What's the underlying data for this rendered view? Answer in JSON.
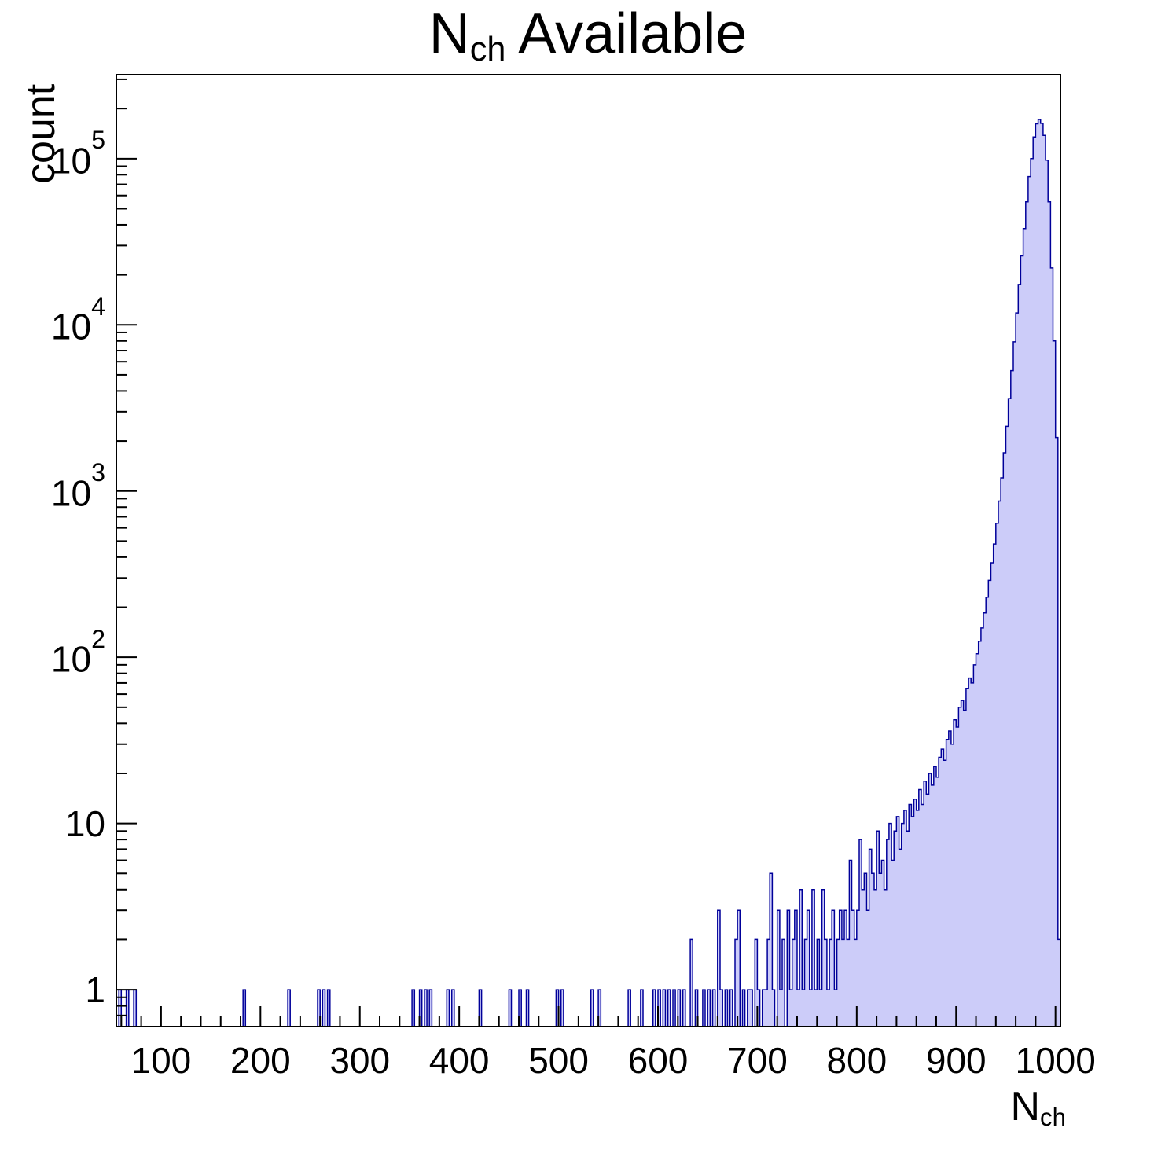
{
  "title": {
    "main": "N",
    "sub": "ch",
    "rest": " Available"
  },
  "axes": {
    "y_label": "count",
    "x_label_main": "N",
    "x_label_sub": "ch",
    "xmin": 55,
    "xmax": 1005,
    "ymin": 0.6,
    "ymax": 320000,
    "yscale": "log",
    "x_major_ticks": [
      100,
      200,
      300,
      400,
      500,
      600,
      700,
      800,
      900,
      1000
    ],
    "x_minor_step": 20,
    "y_major_ticks": [
      {
        "v": 1,
        "base": "1",
        "exp": ""
      },
      {
        "v": 10,
        "base": "10",
        "exp": ""
      },
      {
        "v": 100,
        "base": "10",
        "exp": "2"
      },
      {
        "v": 1000,
        "base": "10",
        "exp": "3"
      },
      {
        "v": 10000,
        "base": "10",
        "exp": "4"
      },
      {
        "v": 100000,
        "base": "10",
        "exp": "5"
      }
    ]
  },
  "colors": {
    "hist_fill": "#ccccf9",
    "hist_line": "#000099",
    "axis": "#000000",
    "background": "#ffffff"
  },
  "chart_data": {
    "type": "bar",
    "subtype": "histogram",
    "title": "N_{ch} Available",
    "xlabel": "N_{ch}",
    "ylabel": "count",
    "xlim": [
      55,
      1005
    ],
    "ylim": [
      0.6,
      320000
    ],
    "yscale": "log",
    "grid": false,
    "legend": false,
    "bin_width": 2.5,
    "bins": [
      [
        57.5,
        1
      ],
      [
        65,
        1
      ],
      [
        72.5,
        1
      ],
      [
        182.5,
        1
      ],
      [
        227.5,
        1
      ],
      [
        257.5,
        1
      ],
      [
        262.5,
        1
      ],
      [
        267.5,
        1
      ],
      [
        352.5,
        1
      ],
      [
        360,
        1
      ],
      [
        365,
        1
      ],
      [
        370,
        1
      ],
      [
        387.5,
        1
      ],
      [
        392.5,
        1
      ],
      [
        420,
        1
      ],
      [
        450,
        1
      ],
      [
        460,
        1
      ],
      [
        467.5,
        1
      ],
      [
        497.5,
        1
      ],
      [
        502.5,
        1
      ],
      [
        532.5,
        1
      ],
      [
        540,
        1
      ],
      [
        570,
        1
      ],
      [
        582.5,
        1
      ],
      [
        595,
        1
      ],
      [
        600,
        1
      ],
      [
        605,
        1
      ],
      [
        610,
        1
      ],
      [
        615,
        1
      ],
      [
        620,
        1
      ],
      [
        625,
        1
      ],
      [
        632.5,
        2
      ],
      [
        637.5,
        1
      ],
      [
        645,
        1
      ],
      [
        650,
        1
      ],
      [
        655,
        1
      ],
      [
        660,
        3
      ],
      [
        662.5,
        1
      ],
      [
        667.5,
        1
      ],
      [
        672.5,
        1
      ],
      [
        677.5,
        2
      ],
      [
        680,
        3
      ],
      [
        685,
        1
      ],
      [
        690,
        1
      ],
      [
        692.5,
        1
      ],
      [
        697.5,
        2
      ],
      [
        700,
        1
      ],
      [
        705,
        1
      ],
      [
        707.5,
        1
      ],
      [
        710,
        2
      ],
      [
        712.5,
        5
      ],
      [
        715,
        1
      ],
      [
        720,
        3
      ],
      [
        722.5,
        1
      ],
      [
        725,
        2
      ],
      [
        730,
        3
      ],
      [
        732.5,
        1
      ],
      [
        735,
        2
      ],
      [
        737.5,
        3
      ],
      [
        740,
        1
      ],
      [
        742.5,
        4
      ],
      [
        745,
        1
      ],
      [
        747.5,
        2
      ],
      [
        750,
        3
      ],
      [
        752.5,
        1
      ],
      [
        755,
        4
      ],
      [
        757.5,
        1
      ],
      [
        760,
        2
      ],
      [
        762.5,
        1
      ],
      [
        765,
        4
      ],
      [
        767.5,
        2
      ],
      [
        770,
        1
      ],
      [
        772.5,
        2
      ],
      [
        775,
        3
      ],
      [
        777.5,
        1
      ],
      [
        780,
        2
      ],
      [
        782.5,
        3
      ],
      [
        785,
        2
      ],
      [
        787.5,
        3
      ],
      [
        790,
        2
      ],
      [
        792.5,
        6
      ],
      [
        795,
        3
      ],
      [
        797.5,
        2
      ],
      [
        800,
        3
      ],
      [
        802.5,
        8
      ],
      [
        805,
        4
      ],
      [
        807.5,
        5
      ],
      [
        810,
        3
      ],
      [
        812.5,
        7
      ],
      [
        815,
        5
      ],
      [
        817.5,
        4
      ],
      [
        820,
        9
      ],
      [
        822.5,
        5
      ],
      [
        825,
        6
      ],
      [
        827.5,
        4
      ],
      [
        830,
        8
      ],
      [
        832.5,
        10
      ],
      [
        835,
        6
      ],
      [
        837.5,
        9
      ],
      [
        840,
        11
      ],
      [
        842.5,
        7
      ],
      [
        845,
        10
      ],
      [
        847.5,
        12
      ],
      [
        850,
        9
      ],
      [
        852.5,
        13
      ],
      [
        855,
        11
      ],
      [
        857.5,
        14
      ],
      [
        860,
        12
      ],
      [
        862.5,
        16
      ],
      [
        865,
        13
      ],
      [
        867.5,
        18
      ],
      [
        870,
        15
      ],
      [
        872.5,
        20
      ],
      [
        875,
        17
      ],
      [
        877.5,
        22
      ],
      [
        880,
        19
      ],
      [
        882.5,
        25
      ],
      [
        885,
        28
      ],
      [
        887.5,
        24
      ],
      [
        890,
        32
      ],
      [
        892.5,
        36
      ],
      [
        895,
        30
      ],
      [
        897.5,
        42
      ],
      [
        900,
        38
      ],
      [
        902.5,
        50
      ],
      [
        905,
        55
      ],
      [
        907.5,
        48
      ],
      [
        910,
        65
      ],
      [
        912.5,
        75
      ],
      [
        915,
        70
      ],
      [
        917.5,
        90
      ],
      [
        920,
        105
      ],
      [
        922.5,
        125
      ],
      [
        925,
        150
      ],
      [
        927.5,
        185
      ],
      [
        930,
        230
      ],
      [
        932.5,
        290
      ],
      [
        935,
        370
      ],
      [
        937.5,
        480
      ],
      [
        940,
        640
      ],
      [
        942.5,
        870
      ],
      [
        945,
        1200
      ],
      [
        947.5,
        1700
      ],
      [
        950,
        2450
      ],
      [
        952.5,
        3600
      ],
      [
        955,
        5300
      ],
      [
        957.5,
        7900
      ],
      [
        960,
        11800
      ],
      [
        962.5,
        17500
      ],
      [
        965,
        26000
      ],
      [
        967.5,
        38000
      ],
      [
        970,
        55000
      ],
      [
        972.5,
        78000
      ],
      [
        975,
        100000
      ],
      [
        977.5,
        135000
      ],
      [
        980,
        162000
      ],
      [
        982.5,
        172000
      ],
      [
        985,
        163000
      ],
      [
        987.5,
        138000
      ],
      [
        990,
        98000
      ],
      [
        992.5,
        55000
      ],
      [
        995,
        22000
      ],
      [
        997.5,
        8000
      ],
      [
        1000,
        2100
      ],
      [
        1002.5,
        2
      ]
    ]
  }
}
